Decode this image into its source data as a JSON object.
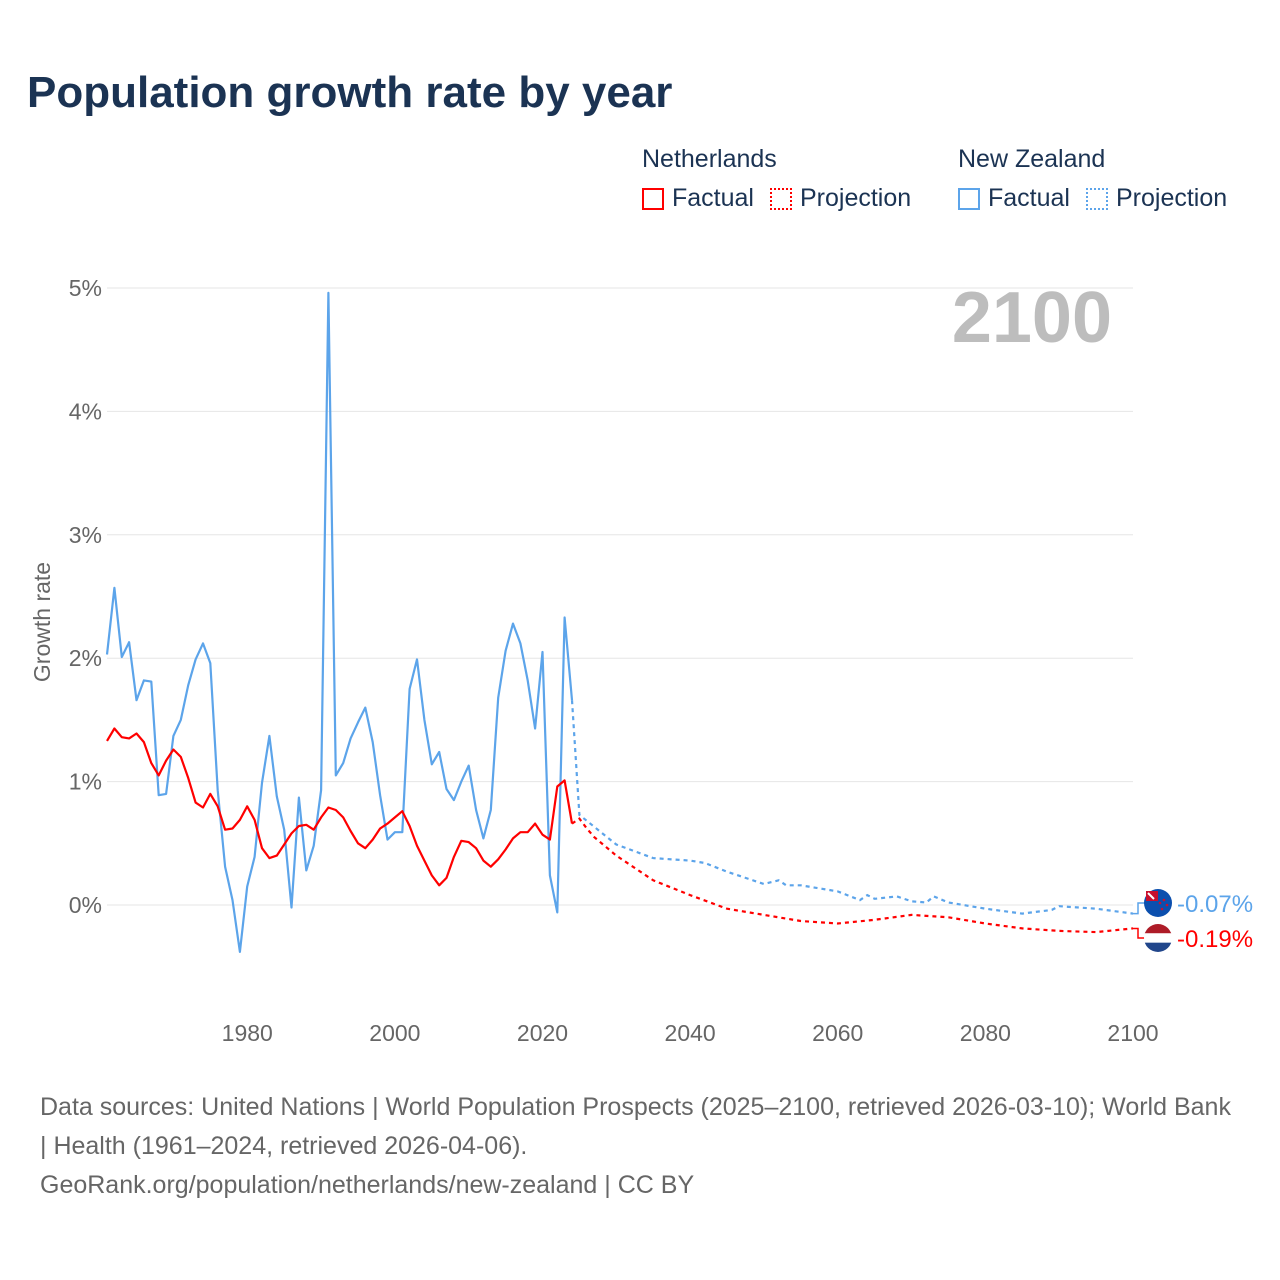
{
  "title": "Population growth rate by year",
  "legend": {
    "groups": [
      {
        "name": "Netherlands",
        "factual": "Factual",
        "projection": "Projection",
        "color": "#ff0000"
      },
      {
        "name": "New Zealand",
        "factual": "Factual",
        "projection": "Projection",
        "color": "#5ca4ea"
      }
    ]
  },
  "footer": {
    "sources": "Data sources: United Nations | World Population Prospects (2025–2100, retrieved 2026-03-10); World Bank | Health (1961–2024, retrieved 2026-04-06).",
    "link": "GeoRank.org/population/netherlands/new-zealand | CC BY"
  },
  "chart_data": {
    "type": "line",
    "title": "Population growth rate by year",
    "ylabel": "Growth rate",
    "xlabel": "",
    "xlim": [
      1961,
      2100
    ],
    "ylim": [
      -0.8,
      5
    ],
    "yticks": [
      0,
      1,
      2,
      3,
      4,
      5
    ],
    "ytick_labels": [
      "0%",
      "1%",
      "2%",
      "3%",
      "4%",
      "5%"
    ],
    "xticks": [
      1980,
      2000,
      2020,
      2040,
      2060,
      2080,
      2100
    ],
    "xtick_labels": [
      "1980",
      "2000",
      "2020",
      "2040",
      "2060",
      "2080",
      "2100"
    ],
    "year_watermark": "2100",
    "grid": true,
    "legend_position": "top-right",
    "series": [
      {
        "name": "Netherlands",
        "color": "#ff0000",
        "end_label": "-0.19%",
        "flag": "netherlands-flag",
        "factual_start": 1961,
        "factual": [
          1.33,
          1.43,
          1.36,
          1.35,
          1.39,
          1.32,
          1.15,
          1.05,
          1.17,
          1.26,
          1.2,
          1.03,
          0.83,
          0.79,
          0.9,
          0.8,
          0.61,
          0.62,
          0.69,
          0.8,
          0.69,
          0.46,
          0.38,
          0.4,
          0.49,
          0.58,
          0.64,
          0.65,
          0.61,
          0.71,
          0.79,
          0.77,
          0.71,
          0.6,
          0.5,
          0.46,
          0.53,
          0.62,
          0.66,
          0.71,
          0.76,
          0.64,
          0.48,
          0.36,
          0.24,
          0.16,
          0.22,
          0.39,
          0.52,
          0.51,
          0.46,
          0.36,
          0.31,
          0.37,
          0.45,
          0.54,
          0.59,
          0.59,
          0.66,
          0.57,
          0.53,
          0.96,
          1.01,
          0.66
        ],
        "projection": [
          [
            2024,
            0.66
          ],
          [
            2025,
            0.7
          ],
          [
            2026,
            0.62
          ],
          [
            2027,
            0.55
          ],
          [
            2030,
            0.4
          ],
          [
            2035,
            0.2
          ],
          [
            2040,
            0.08
          ],
          [
            2045,
            -0.03
          ],
          [
            2050,
            -0.08
          ],
          [
            2055,
            -0.13
          ],
          [
            2060,
            -0.15
          ],
          [
            2065,
            -0.12
          ],
          [
            2070,
            -0.08
          ],
          [
            2075,
            -0.1
          ],
          [
            2080,
            -0.15
          ],
          [
            2085,
            -0.19
          ],
          [
            2090,
            -0.21
          ],
          [
            2095,
            -0.22
          ],
          [
            2100,
            -0.19
          ]
        ]
      },
      {
        "name": "New Zealand",
        "color": "#5ca4ea",
        "end_label": "-0.07%",
        "flag": "new-zealand-flag",
        "factual_start": 1961,
        "factual": [
          2.03,
          2.57,
          2.01,
          2.13,
          1.66,
          1.82,
          1.81,
          0.89,
          0.9,
          1.37,
          1.5,
          1.78,
          1.99,
          2.12,
          1.96,
          0.93,
          0.31,
          0.04,
          -0.38,
          0.15,
          0.39,
          0.99,
          1.37,
          0.88,
          0.61,
          -0.02,
          0.87,
          0.28,
          0.48,
          0.93,
          4.96,
          1.05,
          1.15,
          1.35,
          1.48,
          1.6,
          1.32,
          0.89,
          0.53,
          0.59,
          0.59,
          1.75,
          1.99,
          1.5,
          1.14,
          1.24,
          0.94,
          0.85,
          1.0,
          1.13,
          0.77,
          0.54,
          0.77,
          1.68,
          2.06,
          2.28,
          2.12,
          1.82,
          1.43,
          2.05,
          0.24,
          -0.06,
          2.33,
          1.66
        ],
        "projection": [
          [
            2024,
            1.66
          ],
          [
            2025,
            0.73
          ],
          [
            2030,
            0.49
          ],
          [
            2035,
            0.38
          ],
          [
            2040,
            0.36
          ],
          [
            2042,
            0.34
          ],
          [
            2045,
            0.27
          ],
          [
            2050,
            0.17
          ],
          [
            2052,
            0.2
          ],
          [
            2053,
            0.16
          ],
          [
            2055,
            0.16
          ],
          [
            2060,
            0.11
          ],
          [
            2063,
            0.04
          ],
          [
            2064,
            0.08
          ],
          [
            2065,
            0.05
          ],
          [
            2068,
            0.07
          ],
          [
            2070,
            0.03
          ],
          [
            2072,
            0.02
          ],
          [
            2073,
            0.07
          ],
          [
            2075,
            0.02
          ],
          [
            2080,
            -0.03
          ],
          [
            2085,
            -0.07
          ],
          [
            2089,
            -0.04
          ],
          [
            2090,
            -0.01
          ],
          [
            2095,
            -0.03
          ],
          [
            2100,
            -0.07
          ]
        ]
      }
    ]
  }
}
